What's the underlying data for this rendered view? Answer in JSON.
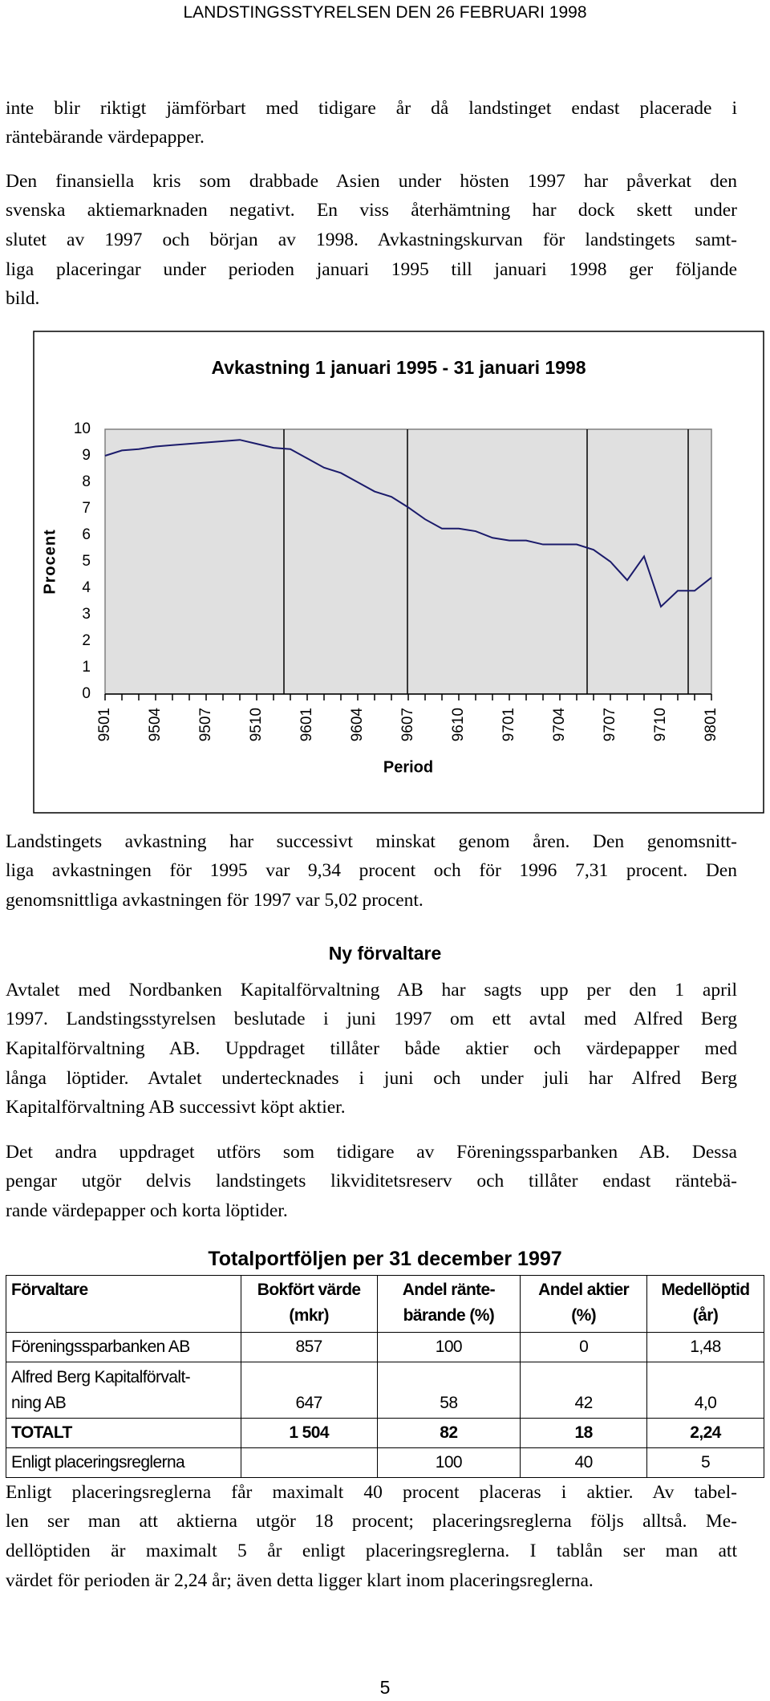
{
  "header": {
    "title": "LANDSTINGSSTYRELSEN DEN 26 FEBRUARI 1998"
  },
  "paragraphs_before": [
    [
      "inte blir riktigt jämförbart med tidigare år då landstinget endast placerade i",
      "räntebärande värdepapper."
    ],
    [
      "Den finansiella kris som drabbade Asien under hösten 1997 har påverkat den",
      "svenska aktiemarknaden negativt. En viss återhämtning har dock skett under",
      "slutet av 1997 och början av 1998. Avkastningskurvan för landstingets samt-",
      "liga placeringar under perioden januari 1995 till januari 1998 ger följande",
      "bild."
    ]
  ],
  "chart_data": {
    "type": "line",
    "title": "Avkastning 1 januari 1995 - 31 januari 1998",
    "x_label": "Period",
    "y_label": "Procent",
    "categories": [
      "9501",
      null,
      null,
      "9504",
      null,
      null,
      "9507",
      null,
      null,
      "9510",
      null,
      null,
      "9601",
      null,
      null,
      "9604",
      null,
      null,
      "9607",
      null,
      null,
      "9610",
      null,
      null,
      "9701",
      null,
      null,
      "9704",
      null,
      null,
      "9707",
      null,
      null,
      "9710",
      null,
      null,
      "9801"
    ],
    "values": [
      9.0,
      9.2,
      9.25,
      9.35,
      9.4,
      9.45,
      9.5,
      9.55,
      9.6,
      9.45,
      9.3,
      9.25,
      8.9,
      8.55,
      8.35,
      8.0,
      7.65,
      7.45,
      7.05,
      6.6,
      6.25,
      6.25,
      6.15,
      5.9,
      5.8,
      5.8,
      5.65,
      5.65,
      5.65,
      5.45,
      5.0,
      4.3,
      5.2,
      3.3,
      3.9,
      3.9,
      4.4
    ],
    "color": "#1b1b6b",
    "ylim": [
      0,
      10
    ],
    "yticks": [
      0,
      1,
      2,
      3,
      4,
      5,
      6,
      7,
      8,
      9,
      10
    ],
    "plot_background": "#e0e0e0",
    "grid": false
  },
  "paragraphs_after": [
    [
      "Landstingets avkastning har successivt minskat genom åren. Den genomsnitt-",
      "liga avkastningen för 1995 var 9,34 procent och för 1996 7,31 procent. Den",
      "genomsnittliga avkastningen för 1997 var 5,02 procent."
    ]
  ],
  "section": {
    "heading": "Ny förvaltare",
    "paragraphs": [
      [
        "Avtalet med Nordbanken Kapitalförvaltning AB har sagts upp per den 1 april",
        "1997. Landstingsstyrelsen beslutade i juni 1997 om ett avtal med Alfred Berg",
        "Kapitalförvaltning AB. Uppdraget tillåter både aktier och värdepapper med",
        "långa löptider. Avtalet undertecknades i juni och under juli har Alfred Berg",
        "Kapitalförvaltning AB successivt köpt aktier."
      ],
      [
        "Det andra uppdraget utförs som tidigare av Föreningssparbanken AB. Dessa",
        "pengar utgör delvis landstingets likviditetsreserv och tillåter endast räntebä-",
        "rande värdepapper och korta löptider."
      ]
    ]
  },
  "table": {
    "title": "Totalportföljen per 31 december 1997",
    "header": [
      [
        "Förvaltare"
      ],
      [
        "Bokfört värde",
        "(mkr)"
      ],
      [
        "Andel ränte-",
        "bärande (%)"
      ],
      [
        "Andel aktier",
        "(%)"
      ],
      [
        "Medellöptid",
        "(år)"
      ]
    ],
    "rows": [
      [
        [
          "Föreningssparbanken AB"
        ],
        [
          "857"
        ],
        [
          "100"
        ],
        [
          "0"
        ],
        [
          "1,48"
        ]
      ],
      [
        [
          "Alfred Berg Kapitalförvalt-",
          "ning AB"
        ],
        [
          "647"
        ],
        [
          "58"
        ],
        [
          "42"
        ],
        [
          "4,0"
        ]
      ],
      [
        [
          "TOTALT"
        ],
        [
          "1 504"
        ],
        [
          "82"
        ],
        [
          "18"
        ],
        [
          "2,24"
        ]
      ],
      [
        [
          "Enligt placeringsreglerna"
        ],
        [],
        [
          "100"
        ],
        [
          "40"
        ],
        [
          "5"
        ]
      ]
    ]
  },
  "closing": [
    [
      "Enligt placeringsreglerna får maximalt 40 procent placeras i aktier. Av tabel-",
      "len ser man att aktierna utgör 18 procent; placeringsreglerna följs alltså. Me-",
      "dellöptiden är maximalt 5 år enligt placeringsreglerna. I tablån ser man att",
      "värdet för perioden är 2,24 år; även detta ligger klart inom placeringsreglerna."
    ]
  ],
  "page_number": "5"
}
